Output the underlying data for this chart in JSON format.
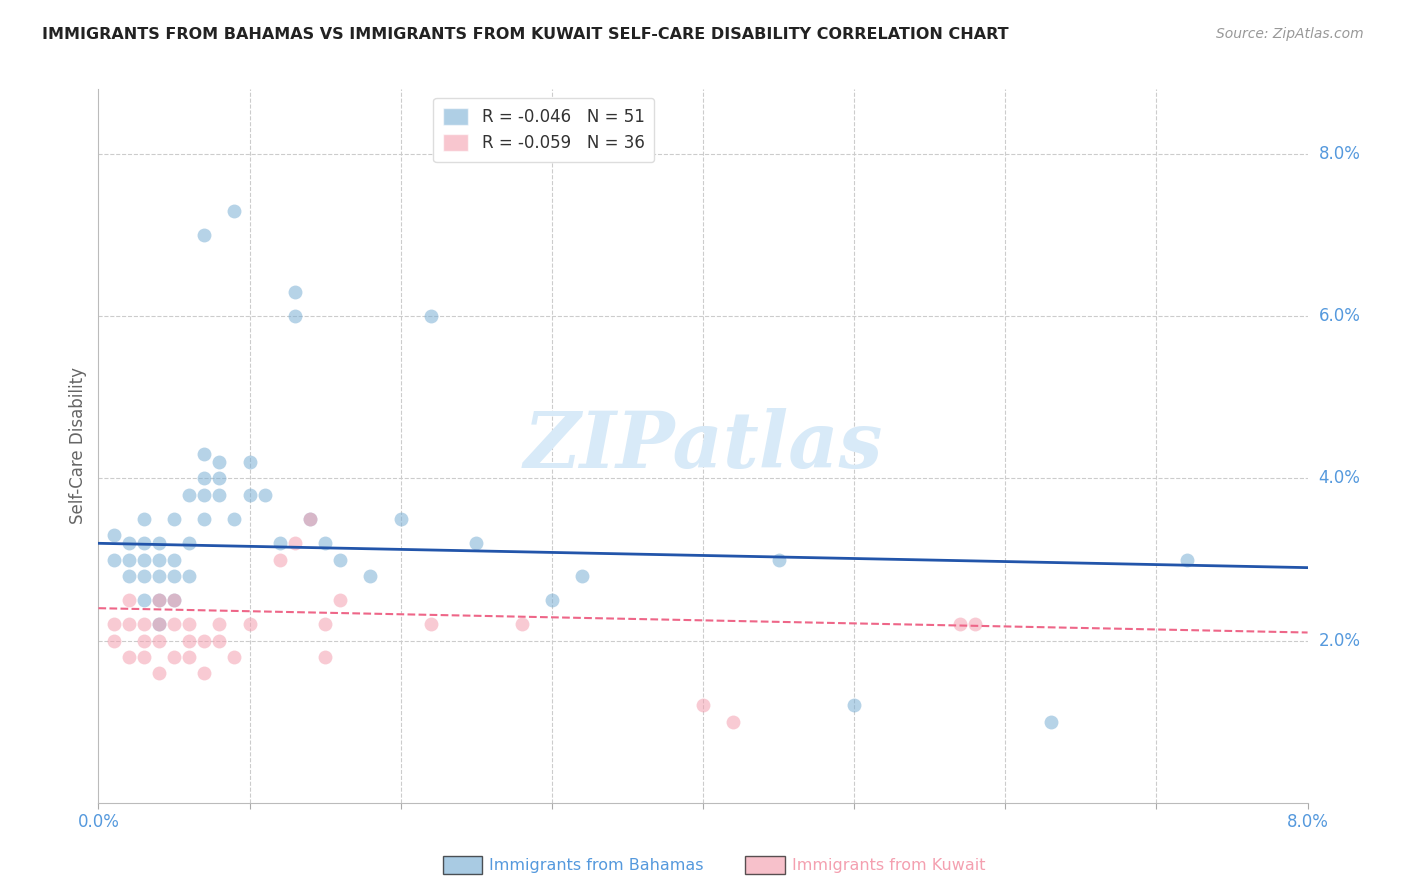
{
  "title": "IMMIGRANTS FROM BAHAMAS VS IMMIGRANTS FROM KUWAIT SELF-CARE DISABILITY CORRELATION CHART",
  "source": "Source: ZipAtlas.com",
  "ylabel": "Self-Care Disability",
  "xlim": [
    0.0,
    0.08
  ],
  "ylim": [
    0.0,
    0.088
  ],
  "y_ticks_right": [
    0.02,
    0.04,
    0.06,
    0.08
  ],
  "x_ticks": [
    0.0,
    0.01,
    0.02,
    0.03,
    0.04,
    0.05,
    0.06,
    0.07,
    0.08
  ],
  "x_tick_labels": [
    "0.0%",
    "",
    "",
    "",
    "",
    "",
    "",
    "",
    "8.0%"
  ],
  "legend_r1": "R = -0.046",
  "legend_n1": "N = 51",
  "legend_r2": "R = -0.059",
  "legend_n2": "N = 36",
  "color_blue": "#7BAFD4",
  "color_pink": "#F4A0B0",
  "color_line_blue": "#2255AA",
  "color_line_pink": "#EE6688",
  "color_axis": "#5599DD",
  "watermark_text": "ZIPatlas",
  "watermark_color": "#D8EAF8",
  "bahamas_x": [
    0.001,
    0.001,
    0.002,
    0.002,
    0.002,
    0.003,
    0.003,
    0.003,
    0.003,
    0.003,
    0.004,
    0.004,
    0.004,
    0.004,
    0.004,
    0.005,
    0.005,
    0.005,
    0.005,
    0.006,
    0.006,
    0.006,
    0.007,
    0.007,
    0.007,
    0.007,
    0.008,
    0.008,
    0.008,
    0.009,
    0.01,
    0.01,
    0.011,
    0.012,
    0.013,
    0.013,
    0.014,
    0.015,
    0.016,
    0.018,
    0.02,
    0.022,
    0.025,
    0.03,
    0.032,
    0.045,
    0.05,
    0.063,
    0.072,
    0.007,
    0.009
  ],
  "bahamas_y": [
    0.03,
    0.033,
    0.028,
    0.032,
    0.03,
    0.025,
    0.028,
    0.03,
    0.032,
    0.035,
    0.022,
    0.025,
    0.028,
    0.03,
    0.032,
    0.025,
    0.028,
    0.03,
    0.035,
    0.028,
    0.032,
    0.038,
    0.04,
    0.043,
    0.035,
    0.038,
    0.04,
    0.038,
    0.042,
    0.035,
    0.038,
    0.042,
    0.038,
    0.032,
    0.06,
    0.063,
    0.035,
    0.032,
    0.03,
    0.028,
    0.035,
    0.06,
    0.032,
    0.025,
    0.028,
    0.03,
    0.012,
    0.01,
    0.03,
    0.07,
    0.073
  ],
  "kuwait_x": [
    0.001,
    0.001,
    0.002,
    0.002,
    0.002,
    0.003,
    0.003,
    0.003,
    0.004,
    0.004,
    0.004,
    0.004,
    0.005,
    0.005,
    0.005,
    0.006,
    0.006,
    0.006,
    0.007,
    0.007,
    0.008,
    0.008,
    0.009,
    0.01,
    0.012,
    0.013,
    0.014,
    0.015,
    0.015,
    0.016,
    0.04,
    0.042,
    0.057,
    0.058,
    0.022,
    0.028
  ],
  "kuwait_y": [
    0.02,
    0.022,
    0.018,
    0.022,
    0.025,
    0.018,
    0.02,
    0.022,
    0.016,
    0.02,
    0.022,
    0.025,
    0.018,
    0.022,
    0.025,
    0.018,
    0.02,
    0.022,
    0.016,
    0.02,
    0.02,
    0.022,
    0.018,
    0.022,
    0.03,
    0.032,
    0.035,
    0.022,
    0.018,
    0.025,
    0.012,
    0.01,
    0.022,
    0.022,
    0.022,
    0.022
  ],
  "blue_trend_x": [
    0.0,
    0.08
  ],
  "blue_trend_y": [
    0.032,
    0.029
  ],
  "pink_trend_x": [
    0.0,
    0.08
  ],
  "pink_trend_y": [
    0.024,
    0.021
  ]
}
